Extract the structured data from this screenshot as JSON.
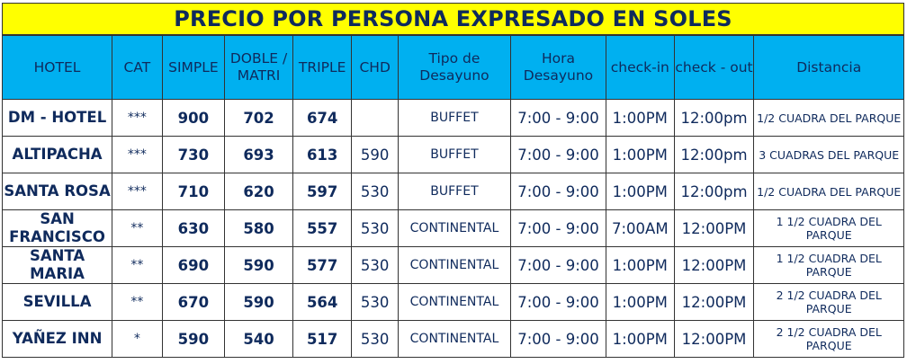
{
  "title": "PRECIO POR PERSONA EXPRESADO EN SOLES",
  "headers": [
    "HOTEL",
    "CAT",
    "SIMPLE",
    "DOBLE / MATRI",
    "TRIPLE",
    "CHD",
    "Tipo de Desayuno",
    "Hora Desayuno",
    "check-in",
    "check - out",
    "Distancia"
  ],
  "rows": [
    {
      "hotel": "DM - HOTEL",
      "cat": "***",
      "simple": "900",
      "doble": "702",
      "triple": "674",
      "chd": "",
      "desayuno": "BUFFET",
      "hora": "7:00 - 9:00",
      "checkin": "1:00PM",
      "checkout": "12:00pm",
      "distancia": "1/2 CUADRA DEL PARQUE"
    },
    {
      "hotel": "ALTIPACHA",
      "cat": "***",
      "simple": "730",
      "doble": "693",
      "triple": "613",
      "chd": "590",
      "desayuno": "BUFFET",
      "hora": "7:00 - 9:00",
      "checkin": "1:00PM",
      "checkout": "12:00pm",
      "distancia": "3 CUADRAS DEL PARQUE"
    },
    {
      "hotel": "SANTA ROSA",
      "cat": "***",
      "simple": "710",
      "doble": "620",
      "triple": "597",
      "chd": "530",
      "desayuno": "BUFFET",
      "hora": "7:00 - 9:00",
      "checkin": "1:00PM",
      "checkout": "12:00pm",
      "distancia": "1/2 CUADRA DEL PARQUE"
    },
    {
      "hotel": "SAN FRANCISCO",
      "cat": "**",
      "simple": "630",
      "doble": "580",
      "triple": "557",
      "chd": "530",
      "desayuno": "CONTINENTAL",
      "hora": "7:00 - 9:00",
      "checkin": "7:00AM",
      "checkout": "12:00PM",
      "distancia": "1 1/2 CUADRA DEL PARQUE"
    },
    {
      "hotel": "SANTA MARIA",
      "cat": "**",
      "simple": "690",
      "doble": "590",
      "triple": "577",
      "chd": "530",
      "desayuno": "CONTINENTAL",
      "hora": "7:00 - 9:00",
      "checkin": "1:00PM",
      "checkout": "12:00PM",
      "distancia": "1 1/2 CUADRA DEL PARQUE"
    },
    {
      "hotel": "SEVILLA",
      "cat": "**",
      "simple": "670",
      "doble": "590",
      "triple": "564",
      "chd": "530",
      "desayuno": "CONTINENTAL",
      "hora": "7:00 - 9:00",
      "checkin": "1:00PM",
      "checkout": "12:00PM",
      "distancia": "2 1/2 CUADRA DEL PARQUE"
    },
    {
      "hotel": "YAÑEZ INN",
      "cat": "*",
      "simple": "590",
      "doble": "540",
      "triple": "517",
      "chd": "530",
      "desayuno": "CONTINENTAL",
      "hora": "7:00 - 9:00",
      "checkin": "1:00PM",
      "checkout": "12:00PM",
      "distancia": "2 1/2 CUADRA DEL PARQUE"
    }
  ],
  "colors": {
    "title_bg": "#ffff00",
    "header_bg": "#00b0f0",
    "text": "#0f2a5c"
  }
}
